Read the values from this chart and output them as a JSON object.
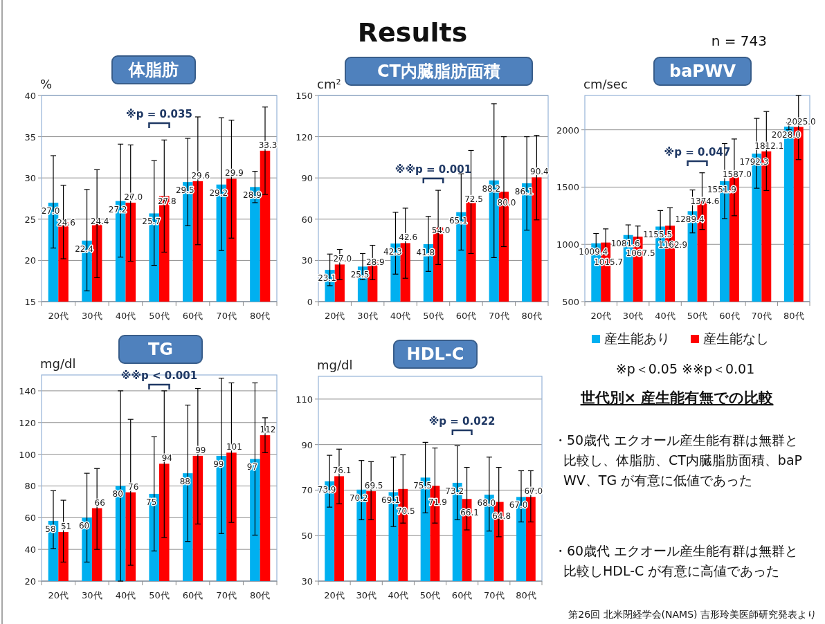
{
  "chart_data": [
    {
      "type": "bar",
      "title": "体脂肪",
      "ylabel": "%",
      "categories": [
        "20代",
        "30代",
        "40代",
        "50代",
        "60代",
        "70代",
        "80代"
      ],
      "ylim": [
        15,
        40
      ],
      "yticks": [
        15,
        20,
        25,
        30,
        35,
        40
      ],
      "grid": "y",
      "series": [
        {
          "color": "#00b0f0",
          "values": [
            27.0,
            22.4,
            27.2,
            25.7,
            29.5,
            29.2,
            28.9
          ],
          "value_labels": [
            "27.0",
            "22.4",
            "27.2",
            "25.7",
            "29.5",
            "29.2",
            "28.9"
          ],
          "errors": [
            [
              21.5,
              32.7
            ],
            [
              16.3,
              28.6
            ],
            [
              20.4,
              34.1
            ],
            [
              19.4,
              32.1
            ],
            [
              24.2,
              34.8
            ],
            [
              21.2,
              37.3
            ],
            [
              27.0,
              30.8
            ]
          ]
        },
        {
          "color": "#ff0000",
          "values": [
            24.6,
            24.4,
            27.0,
            27.8,
            29.6,
            29.9,
            33.3
          ],
          "value_labels": [
            "24.6",
            "24.4",
            "27.0",
            "27.8",
            "29.6",
            "29.9",
            "33.3"
          ],
          "errors": [
            [
              20.2,
              29.1
            ],
            [
              17.9,
              31.0
            ],
            [
              19.9,
              34.0
            ],
            [
              21.0,
              34.6
            ],
            [
              21.9,
              37.4
            ],
            [
              22.7,
              37.0
            ],
            [
              28.0,
              38.6
            ]
          ]
        }
      ],
      "annotations": [
        "※p = 0.035"
      ]
    },
    {
      "type": "bar",
      "title": "CT内臓脂肪面積",
      "ylabel": "cm²",
      "categories": [
        "20代",
        "30代",
        "40代",
        "50代",
        "60代",
        "70代",
        "80代"
      ],
      "ylim": [
        0,
        150
      ],
      "yticks": [
        0,
        30,
        60,
        90,
        120,
        150
      ],
      "grid": "y",
      "series": [
        {
          "color": "#00b0f0",
          "values": [
            23.1,
            25.5,
            42.3,
            41.8,
            65.1,
            88.2,
            86.1
          ],
          "value_labels": [
            "23.1",
            "25.5",
            "42.3",
            "41.8",
            "65.1",
            "88.2",
            "86.1"
          ],
          "errors": [
            [
              11.6,
              34.6
            ],
            [
              16,
              35
            ],
            [
              20,
              65
            ],
            [
              22,
              62
            ],
            [
              37.5,
              93
            ],
            [
              32,
              144
            ],
            [
              52,
              120
            ]
          ]
        },
        {
          "color": "#ff0000",
          "values": [
            27.0,
            28.9,
            42.6,
            54.0,
            72.5,
            80.0,
            90.4
          ],
          "value_labels": [
            "27.0",
            "28.9",
            "42.6",
            "54.0",
            "72.5",
            "80.0",
            "90.4"
          ],
          "errors": [
            [
              16,
              38
            ],
            [
              16,
              41
            ],
            [
              17,
              68
            ],
            [
              27,
              81
            ],
            [
              35,
              110
            ],
            [
              40,
              120
            ],
            [
              59.5,
              121
            ]
          ]
        }
      ],
      "annotations": [
        "※※p = 0.001"
      ]
    },
    {
      "type": "bar",
      "title": "baPWV",
      "ylabel": "cm/sec",
      "categories": [
        "20代",
        "30代",
        "40代",
        "50代",
        "60代",
        "70代",
        "80代"
      ],
      "ylim": [
        500,
        2300
      ],
      "yticks": [
        500,
        1000,
        1500,
        2000
      ],
      "grid": "y",
      "legend": "bottom",
      "series": [
        {
          "name": "産生能あり",
          "color": "#00b0f0",
          "values": [
            1009.4,
            1081.6,
            1155.5,
            1289.4,
            1551.9,
            1792.3,
            2028.0
          ],
          "value_labels": [
            "1009.4",
            "1081.6",
            "1155.5",
            "1289.4",
            "1551.9",
            "1792.3",
            "2028.0"
          ],
          "errors": [
            [
              925,
              1095
            ],
            [
              990,
              1170
            ],
            [
              1020,
              1295
            ],
            [
              1100,
              1475
            ],
            [
              1225,
              1880
            ],
            [
              1490,
              2100
            ],
            [
              2000,
              2060
            ]
          ]
        },
        {
          "name": "産生能なし",
          "color": "#ff0000",
          "values": [
            1015.7,
            1067.5,
            1162.9,
            1374.6,
            1587.0,
            1812.1,
            2025.0
          ],
          "value_labels": [
            "1015.7",
            "1067.5",
            "1162.9",
            "1374.6",
            "1587.0",
            "1812.1",
            "2025.0"
          ],
          "errors": [
            [
              910,
              1135
            ],
            [
              980,
              1160
            ],
            [
              1010,
              1320
            ],
            [
              1130,
              1625
            ],
            [
              1250,
              1920
            ],
            [
              1470,
              2160
            ],
            [
              1740,
              2300
            ]
          ]
        }
      ],
      "annotations": [
        "※p = 0.047"
      ]
    },
    {
      "type": "bar",
      "title": "TG",
      "ylabel": "mg/dl",
      "categories": [
        "20代",
        "30代",
        "40代",
        "50代",
        "60代",
        "70代",
        "80代"
      ],
      "ylim": [
        20,
        150
      ],
      "yticks": [
        20,
        40,
        60,
        80,
        100,
        120,
        140
      ],
      "grid": "y",
      "series": [
        {
          "color": "#00b0f0",
          "values": [
            58,
            60,
            80,
            75,
            88,
            99,
            97
          ],
          "value_labels": [
            "58",
            "60",
            "80",
            "75",
            "88",
            "99",
            "97"
          ],
          "errors": [
            [
              40.5,
              77
            ],
            [
              32,
              88
            ],
            [
              20,
              140
            ],
            [
              39,
              111
            ],
            [
              45,
              131
            ],
            [
              50,
              148
            ],
            [
              49,
              145
            ]
          ]
        },
        {
          "color": "#ff0000",
          "values": [
            51,
            66,
            76,
            94,
            99,
            101,
            112
          ],
          "value_labels": [
            "51",
            "66",
            "76",
            "94",
            "99",
            "101",
            "112"
          ],
          "errors": [
            [
              32,
              71
            ],
            [
              40,
              91
            ],
            [
              30,
              122
            ],
            [
              47.5,
              140
            ],
            [
              56,
              141.5
            ],
            [
              57,
              145
            ],
            [
              101,
              123
            ]
          ]
        }
      ],
      "annotations": [
        "※※p < 0.001"
      ]
    },
    {
      "type": "bar",
      "title": "HDL-C",
      "ylabel": "mg/dl",
      "categories": [
        "20代",
        "30代",
        "40代",
        "50代",
        "60代",
        "70代",
        "80代"
      ],
      "ylim": [
        30,
        120
      ],
      "yticks": [
        30,
        50,
        70,
        90,
        110
      ],
      "grid": "y",
      "series": [
        {
          "color": "#00b0f0",
          "values": [
            73.9,
            70.2,
            69.1,
            75.5,
            73.2,
            68.0,
            67.0
          ],
          "value_labels": [
            "73.9",
            "70.2",
            "69.1",
            "75.5",
            "73.2",
            "68.0",
            "67.0"
          ],
          "errors": [
            [
              62.5,
              85.3
            ],
            [
              57,
              83
            ],
            [
              54,
              84.5
            ],
            [
              60,
              91
            ],
            [
              57,
              89.5
            ],
            [
              52,
              84.5
            ],
            [
              56,
              78.5
            ]
          ]
        },
        {
          "color": "#ff0000",
          "values": [
            76.1,
            69.5,
            70.5,
            71.9,
            66.1,
            64.8,
            67.0
          ],
          "value_labels": [
            "76.1",
            "69.5",
            "70.5",
            "71.9",
            "66.1",
            "64.8",
            "67.0"
          ],
          "errors": [
            [
              64,
              88
            ],
            [
              57,
              82.5
            ],
            [
              55.5,
              85.5
            ],
            [
              55.5,
              88.5
            ],
            [
              52.5,
              80
            ],
            [
              49.5,
              80
            ],
            [
              56,
              78.5
            ]
          ]
        }
      ],
      "annotations": [
        "※p = 0.022"
      ]
    },
    {
      "type": "other",
      "title": "世代別× 産生能有無での比較",
      "annotations": [
        "Results",
        "n = 743",
        "※p＜0.05  ※※p＜0.01",
        "・50歳代  エクオール産生能有群は無群と比較し、体脂肪、CT内臓脂肪面積、baPWV、TG  が有意に低値であった",
        "・60歳代  エクオール産生能有群は無群と比較しHDL-C が有意に高値であった",
        "第26回 北米閉経学会(NAMS)  吉形玲美医師研究発表より"
      ]
    }
  ]
}
